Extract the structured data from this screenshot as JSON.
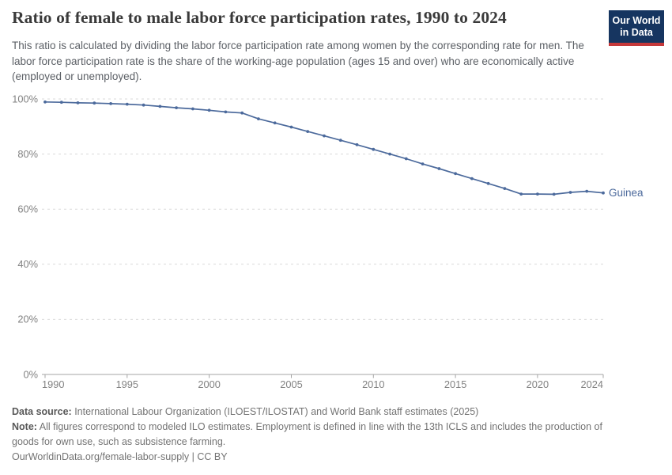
{
  "header": {
    "title": "Ratio of female to male labor force participation rates, 1990 to 2024",
    "subtitle": "This ratio is calculated by dividing the labor force participation rate among women by the corresponding rate for men. The labor force participation rate is the share of the working-age population (ages 15 and over) who are economically active (employed or unemployed).",
    "logo": {
      "line1": "Our World",
      "line2": "in Data",
      "bg_color": "#163560",
      "accent_color": "#C5383A"
    }
  },
  "chart_data": {
    "type": "line",
    "title": "Ratio of female to male labor force participation rates, 1990 to 2024",
    "xlabel": "",
    "ylabel": "",
    "ylim": [
      0,
      100
    ],
    "grid": "horizontal-dashed",
    "legend_position": "line-end-label",
    "x": [
      1990,
      1991,
      1992,
      1993,
      1994,
      1995,
      1996,
      1997,
      1998,
      1999,
      2000,
      2001,
      2002,
      2003,
      2004,
      2005,
      2006,
      2007,
      2008,
      2009,
      2010,
      2011,
      2012,
      2013,
      2014,
      2015,
      2016,
      2017,
      2018,
      2019,
      2020,
      2021,
      2022,
      2023,
      2024
    ],
    "series": [
      {
        "name": "Guinea",
        "color": "#4C6A9C",
        "values": [
          98.9,
          98.8,
          98.6,
          98.5,
          98.3,
          98.1,
          97.8,
          97.3,
          96.8,
          96.4,
          95.9,
          95.3,
          94.9,
          92.8,
          91.3,
          89.8,
          88.2,
          86.6,
          85.0,
          83.4,
          81.7,
          80.0,
          78.3,
          76.4,
          74.7,
          72.9,
          71.1,
          69.3,
          67.5,
          65.5,
          65.5,
          65.4,
          66.1,
          66.5,
          65.9
        ]
      }
    ],
    "yticks": [
      {
        "value": 0,
        "label": "0%"
      },
      {
        "value": 20,
        "label": "20%"
      },
      {
        "value": 40,
        "label": "40%"
      },
      {
        "value": 60,
        "label": "60%"
      },
      {
        "value": 80,
        "label": "80%"
      },
      {
        "value": 100,
        "label": "100%"
      }
    ],
    "xticks": [
      {
        "value": 1990,
        "label": "1990"
      },
      {
        "value": 1995,
        "label": "1995"
      },
      {
        "value": 2000,
        "label": "2000"
      },
      {
        "value": 2005,
        "label": "2005"
      },
      {
        "value": 2010,
        "label": "2010"
      },
      {
        "value": 2015,
        "label": "2015"
      },
      {
        "value": 2020,
        "label": "2020"
      },
      {
        "value": 2024,
        "label": "2024"
      }
    ]
  },
  "footer": {
    "data_source_label": "Data source:",
    "data_source_text": " International Labour Organization (ILOEST/ILOSTAT) and World Bank staff estimates (2025)",
    "note_label": "Note:",
    "note_text": " All figures correspond to modeled ILO estimates. Employment is defined in line with the 13th ICLS and includes the production of goods for own use, such as subsistence farming.",
    "url": "OurWorldinData.org/female-labor-supply",
    "separator": " | ",
    "license": "CC BY"
  }
}
